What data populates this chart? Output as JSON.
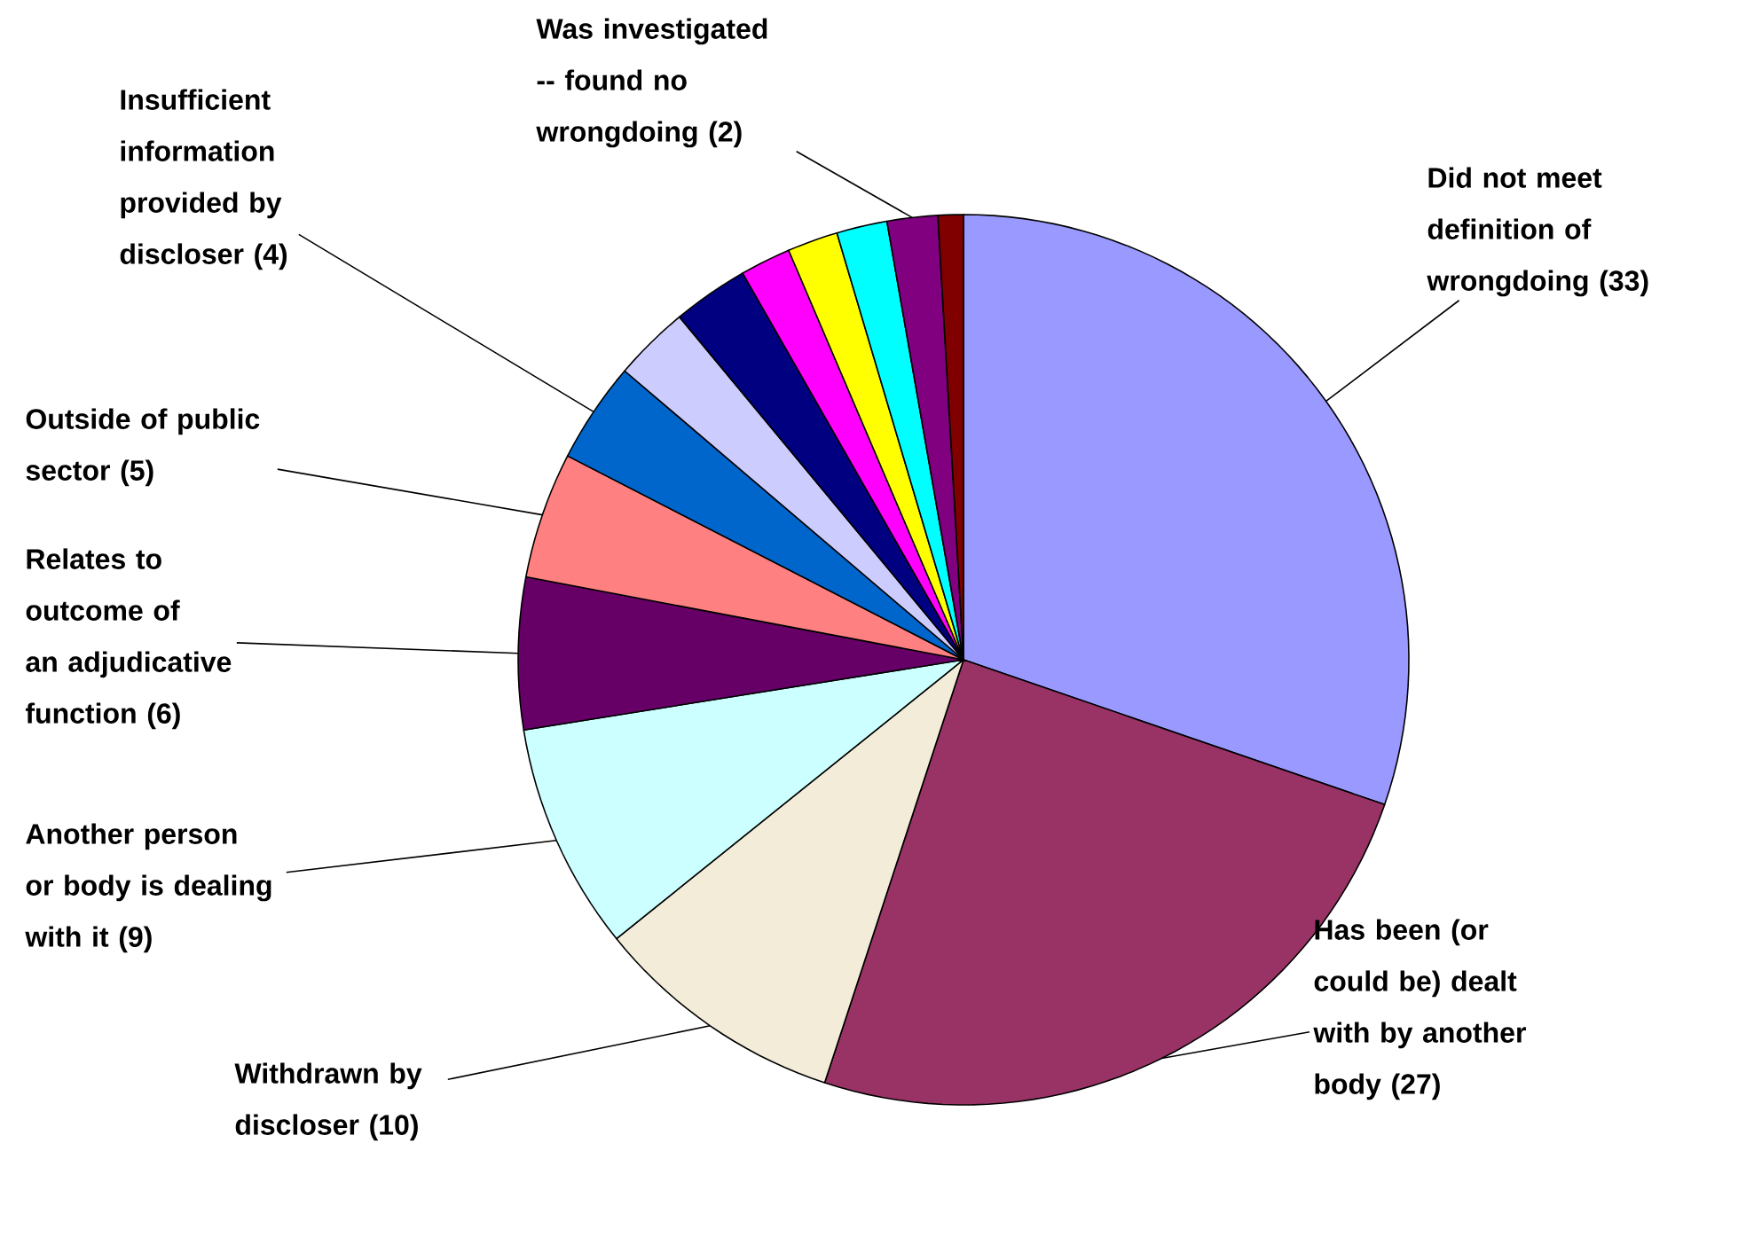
{
  "chart_data": {
    "type": "pie",
    "categories": [
      "Did not meet definition of wrongdoing (33)",
      "Has been (or could be) dealt with by another body (27)",
      "Withdrawn by discloser (10)",
      "Another person or body is dealing with it (9)",
      "Relates to outcome of an adjudicative function (6)",
      "Outside of public sector (5)",
      "Insufficient information provided by discloser (4)",
      null,
      null,
      null,
      null,
      null,
      "Was investigated -- found no wrongdoing (2)",
      null
    ],
    "values": [
      33,
      27,
      10,
      9,
      6,
      5,
      4,
      3,
      3,
      2,
      2,
      2,
      2,
      1
    ],
    "colors": [
      "#9999ff",
      "#993366",
      "#f2ecd8",
      "#ccffff",
      "#660066",
      "#ff8080",
      "#0066cc",
      "#ccccff",
      "#000080",
      "#ff00ff",
      "#ffff00",
      "#00ffff",
      "#800080",
      "#800000"
    ]
  }
}
